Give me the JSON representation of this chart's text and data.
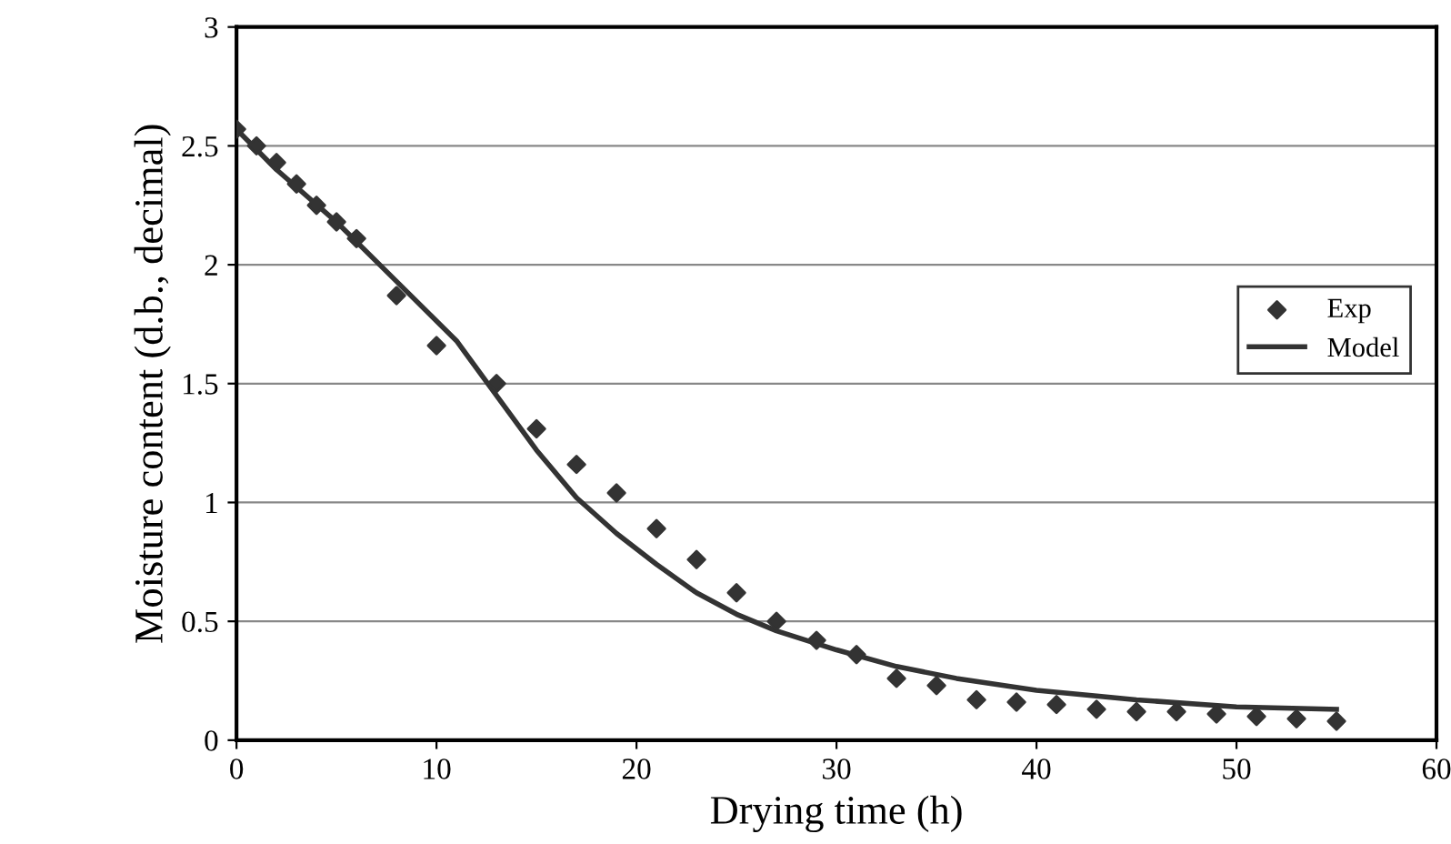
{
  "chart_data": {
    "type": "scatter",
    "xlabel": "Drying time (h)",
    "ylabel": "Moisture content (d.b., decimal)",
    "series": [
      {
        "name": "Exp",
        "marker": "diamond",
        "color": "#333333",
        "x": [
          0,
          1,
          2,
          3,
          4,
          5,
          6,
          8,
          10,
          13,
          15,
          17,
          19,
          21,
          23,
          25,
          27,
          29,
          31,
          33,
          35,
          37,
          39,
          41,
          43,
          45,
          47,
          49,
          51,
          53,
          55
        ],
        "values": [
          2.57,
          2.5,
          2.43,
          2.34,
          2.25,
          2.18,
          2.11,
          1.87,
          1.66,
          1.5,
          1.31,
          1.16,
          1.04,
          0.89,
          0.76,
          0.62,
          0.5,
          0.42,
          0.36,
          0.26,
          0.23,
          0.17,
          0.16,
          0.15,
          0.13,
          0.12,
          0.12,
          0.11,
          0.1,
          0.09,
          0.08
        ]
      },
      {
        "name": "Model",
        "type": "line",
        "marker": "none",
        "line_style": "solid",
        "color": "#333333",
        "x": [
          0,
          2,
          5,
          8,
          11,
          13,
          15,
          17,
          19,
          21,
          23,
          25,
          27,
          30,
          33,
          36,
          40,
          45,
          50,
          55
        ],
        "values": [
          2.57,
          2.4,
          2.18,
          1.93,
          1.68,
          1.45,
          1.22,
          1.02,
          0.87,
          0.74,
          0.62,
          0.53,
          0.46,
          0.38,
          0.31,
          0.26,
          0.21,
          0.17,
          0.14,
          0.13
        ]
      }
    ],
    "xlim": [
      0,
      60
    ],
    "xticks": [
      0,
      10,
      20,
      30,
      40,
      50,
      60
    ],
    "ylim": [
      0,
      3
    ],
    "yticks": [
      0,
      0.5,
      1,
      1.5,
      2,
      2.5,
      3
    ],
    "grid": "y",
    "legend": "center right"
  }
}
